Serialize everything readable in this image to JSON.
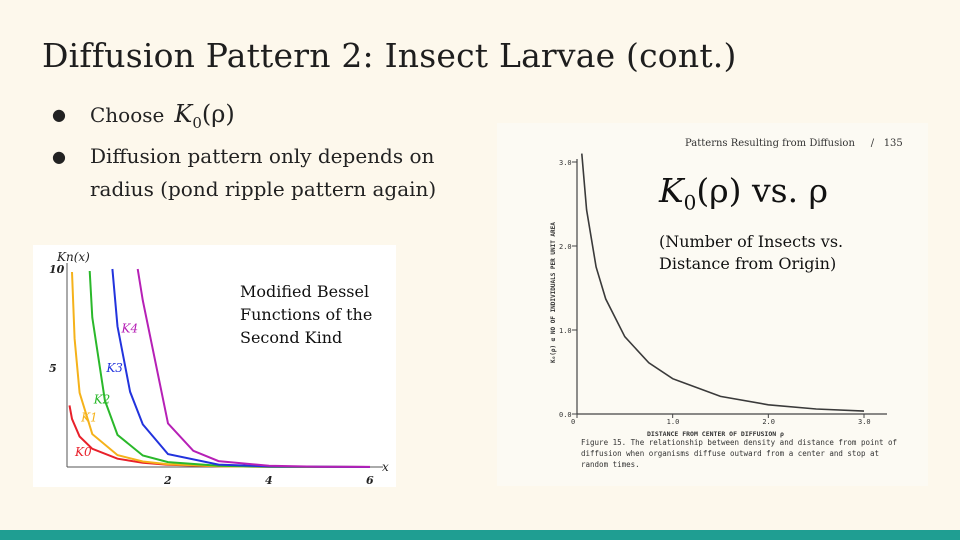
{
  "slide": {
    "title": "Diffusion Pattern 2: Insect Larvae (cont.)",
    "bullets": [
      {
        "text": "Choose",
        "math": "K",
        "math_sub": "0",
        "math_arg": "(ρ)"
      },
      {
        "text": "Diffusion pattern only depends on radius (pond ripple pattern again)"
      }
    ],
    "bullet_symbol": "●",
    "accent_color": "#1f9e92"
  },
  "left_figure": {
    "caption": "Modified Bessel Functions of the Second Kind",
    "y_axis_label": "Kn(x)",
    "x_axis_label": "x",
    "y_ticks": [
      "10",
      "5"
    ],
    "x_ticks": [
      "2",
      "4",
      "6"
    ],
    "curve_labels": [
      "K0",
      "K1",
      "K2",
      "K3",
      "K4"
    ],
    "curve_colors": [
      "#e8202a",
      "#f5b21a",
      "#2ab82a",
      "#2233dd",
      "#b620b6"
    ],
    "chart_data": {
      "type": "line",
      "xlim": [
        0,
        6
      ],
      "ylim": [
        0,
        10
      ],
      "series": [
        {
          "name": "K0",
          "x": [
            0.05,
            0.1,
            0.25,
            0.5,
            1,
            1.5,
            2,
            3,
            4,
            5,
            6
          ],
          "values": [
            3.11,
            2.43,
            1.54,
            0.92,
            0.42,
            0.21,
            0.11,
            0.035,
            0.011,
            0.0037,
            0.0012
          ]
        },
        {
          "name": "K1",
          "x": [
            0.1,
            0.15,
            0.25,
            0.5,
            1,
            1.5,
            2,
            3,
            4,
            5,
            6
          ],
          "values": [
            9.85,
            6.48,
            3.75,
            1.66,
            0.6,
            0.28,
            0.14,
            0.04,
            0.012,
            0.004,
            0.0013
          ]
        },
        {
          "name": "K2",
          "x": [
            0.45,
            0.5,
            0.75,
            1,
            1.5,
            2,
            3,
            4,
            5,
            6
          ],
          "values": [
            9.9,
            7.55,
            3.36,
            1.62,
            0.58,
            0.25,
            0.062,
            0.017,
            0.0053,
            0.0017
          ]
        },
        {
          "name": "K3",
          "x": [
            0.9,
            1,
            1.25,
            1.5,
            2,
            3,
            4,
            5,
            6
          ],
          "values": [
            10.0,
            7.1,
            3.8,
            2.15,
            0.65,
            0.122,
            0.03,
            0.0083,
            0.0025
          ]
        },
        {
          "name": "K4",
          "x": [
            1.4,
            1.5,
            2,
            2.5,
            3,
            4,
            5,
            6
          ],
          "values": [
            10.2,
            8.41,
            2.2,
            0.82,
            0.3,
            0.0615,
            0.0146,
            0.004
          ]
        }
      ]
    }
  },
  "right_figure": {
    "book_header": "Patterns Resulting from Diffusion     /   135",
    "overlay_title_math": "K",
    "overlay_title_sub": "0",
    "overlay_title_rest": "(ρ) vs. ρ",
    "overlay_subtitle": "(Number of Insects vs. Distance from Origin)",
    "y_axis_label": "K₀(ρ) α NO OF INDIVIDUALS PER UNIT AREA",
    "x_axis_label": "DISTANCE FROM CENTER OF DIFFUSION  ρ",
    "y_ticks": [
      "3.0",
      "2.0",
      "1.0",
      "0.0"
    ],
    "x_ticks": [
      "0",
      "1.0",
      "2.0",
      "3.0"
    ],
    "figure_caption": "Figure 15. The relationship between density and distance from point of diffusion when organisms diffuse outward from a center and stop at random times.",
    "chart_data": {
      "type": "line",
      "xlim": [
        0,
        3
      ],
      "ylim": [
        0,
        3
      ],
      "series": [
        {
          "x": [
            0.05,
            0.1,
            0.2,
            0.3,
            0.5,
            0.75,
            1.0,
            1.5,
            2.0,
            2.5,
            3.0
          ],
          "values": [
            3.11,
            2.43,
            1.75,
            1.37,
            0.92,
            0.61,
            0.42,
            0.21,
            0.11,
            0.06,
            0.035
          ]
        }
      ]
    }
  }
}
